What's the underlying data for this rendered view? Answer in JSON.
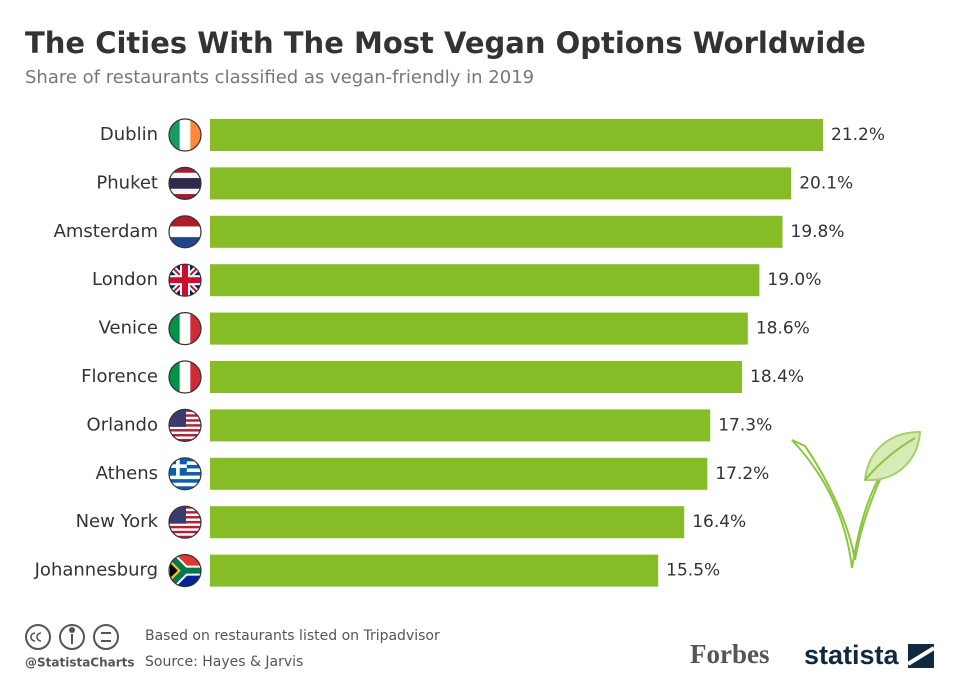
{
  "chart_data": {
    "type": "bar",
    "orientation": "horizontal",
    "title": "The Cities With The Most Vegan Options Worldwide",
    "subtitle": "Share of restaurants classified as vegan-friendly in 2019",
    "categories": [
      "Dublin",
      "Phuket",
      "Amsterdam",
      "London",
      "Venice",
      "Florence",
      "Orlando",
      "Athens",
      "New York",
      "Johannesburg"
    ],
    "values": [
      21.2,
      20.1,
      19.8,
      19.0,
      18.6,
      18.4,
      17.3,
      17.2,
      16.4,
      15.5
    ],
    "value_labels": [
      "21.2%",
      "20.1%",
      "19.8%",
      "19.0%",
      "18.6%",
      "18.4%",
      "17.3%",
      "17.2%",
      "16.4%",
      "15.5%"
    ],
    "color": "#86bc25",
    "note": "Based on restaurants listed on Tripadvisor",
    "source": "Source: Hayes & Jarvis",
    "handle": "@StatistaCharts",
    "brands": [
      "Forbes",
      "statista"
    ]
  }
}
